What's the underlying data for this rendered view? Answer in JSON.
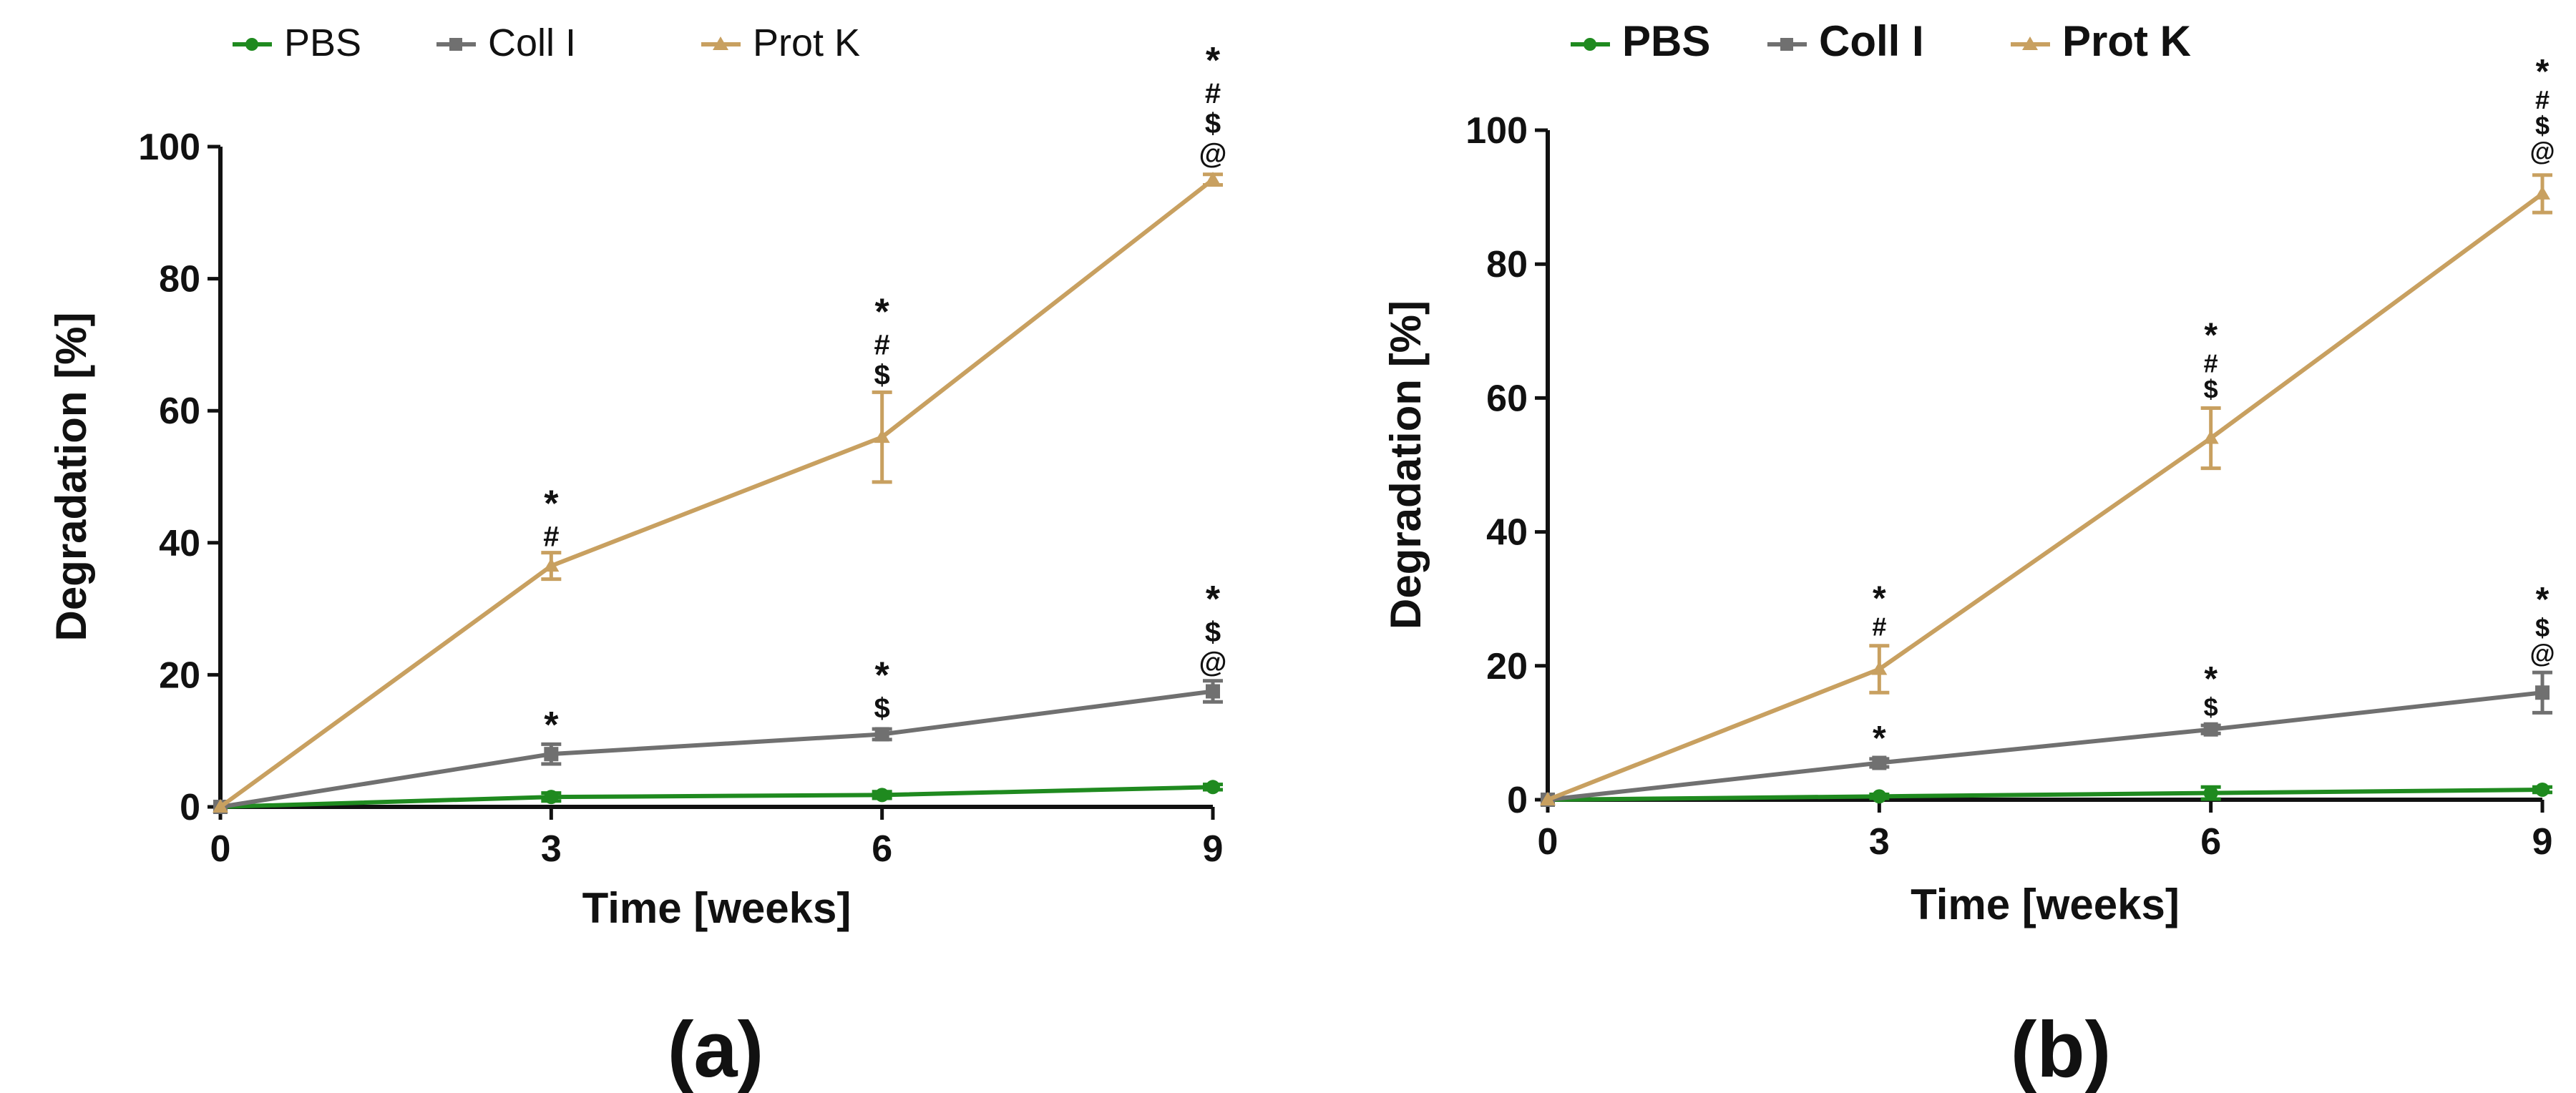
{
  "figure": {
    "panel_labels": [
      "(a)",
      "(b)"
    ]
  },
  "chart_data": [
    {
      "type": "line",
      "panel": "(a)",
      "xlabel": "Time [weeks]",
      "ylabel": "Degradation [%]",
      "x": [
        0,
        3,
        6,
        9
      ],
      "xticks": [
        "0",
        "3",
        "6",
        "9"
      ],
      "yticks": [
        "0",
        "20",
        "40",
        "60",
        "80",
        "100"
      ],
      "xlim": [
        0,
        9
      ],
      "ylim": [
        0,
        100
      ],
      "legend": "top",
      "series": [
        {
          "name": "PBS",
          "color": "#1f8a1f",
          "values": [
            0,
            1.5,
            1.8,
            3
          ],
          "errors": [
            0,
            0.6,
            0.5,
            0.4
          ]
        },
        {
          "name": "Coll I",
          "color": "#707070",
          "values": [
            0,
            8,
            11,
            17.5
          ],
          "errors": [
            0,
            1.5,
            0.8,
            1.6
          ]
        },
        {
          "name": "Prot K",
          "color": "#c8a060",
          "values": [
            0,
            36.5,
            56,
            95
          ],
          "errors": [
            0,
            2,
            6.8,
            0.8
          ]
        }
      ],
      "annotations": [
        {
          "x": 3,
          "y": 10.5,
          "symbols": [
            "*"
          ]
        },
        {
          "x": 6,
          "y": 13.5,
          "symbols": [
            "*",
            "$"
          ]
        },
        {
          "x": 9,
          "y": 20.5,
          "symbols": [
            "*",
            "$",
            "@"
          ]
        },
        {
          "x": 3,
          "y": 39.5,
          "symbols": [
            "*",
            "#"
          ]
        },
        {
          "x": 6,
          "y": 64,
          "symbols": [
            "*",
            "#",
            "$"
          ]
        },
        {
          "x": 9,
          "y": 97.5,
          "symbols": [
            "*",
            "#",
            "$",
            "@"
          ]
        }
      ]
    },
    {
      "type": "line",
      "panel": "(b)",
      "xlabel": "Time [weeks]",
      "ylabel": "Degradation [%]",
      "x": [
        0,
        3,
        6,
        9
      ],
      "xticks": [
        "0",
        "3",
        "6",
        "9"
      ],
      "yticks": [
        "0",
        "20",
        "40",
        "60",
        "80",
        "100"
      ],
      "xlim": [
        0,
        9
      ],
      "ylim": [
        0,
        100
      ],
      "legend": "top",
      "series": [
        {
          "name": "PBS",
          "color": "#1f8a1f",
          "values": [
            0,
            0.5,
            1,
            1.5
          ],
          "errors": [
            0,
            0.3,
            0.9,
            0.4
          ]
        },
        {
          "name": "Coll I",
          "color": "#707070",
          "values": [
            0,
            5.5,
            10.5,
            16
          ],
          "errors": [
            0,
            0.6,
            0.6,
            3
          ]
        },
        {
          "name": "Prot K",
          "color": "#c8a060",
          "values": [
            0,
            19.5,
            54,
            90.5
          ],
          "errors": [
            0,
            3.5,
            4.5,
            2.8
          ]
        }
      ],
      "annotations": [
        {
          "x": 3,
          "y": 7.5,
          "symbols": [
            "*"
          ]
        },
        {
          "x": 6,
          "y": 12.5,
          "symbols": [
            "*",
            "$"
          ]
        },
        {
          "x": 9,
          "y": 20.5,
          "symbols": [
            "*",
            "$",
            "@"
          ]
        },
        {
          "x": 3,
          "y": 24.5,
          "symbols": [
            "*",
            "#"
          ]
        },
        {
          "x": 6,
          "y": 60,
          "symbols": [
            "*",
            "#",
            "$"
          ]
        },
        {
          "x": 9,
          "y": 95.5,
          "symbols": [
            "*",
            "#",
            "$",
            "@"
          ]
        }
      ]
    }
  ]
}
